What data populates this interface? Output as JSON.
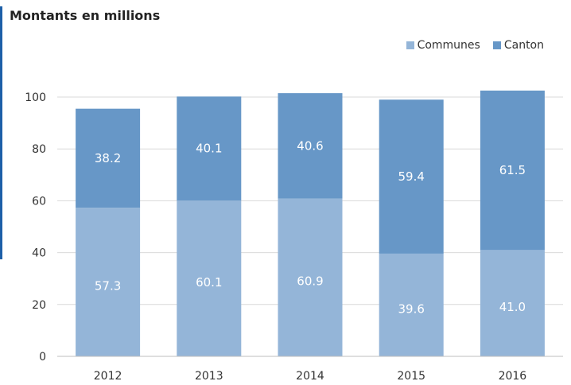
{
  "chart_data": {
    "type": "bar",
    "stacked": true,
    "title": "Montants en millions",
    "categories": [
      "2012",
      "2013",
      "2014",
      "2015",
      "2016"
    ],
    "series": [
      {
        "name": "Communes",
        "color": "#94b5d8",
        "values": [
          57.3,
          60.1,
          60.9,
          39.6,
          41.0
        ],
        "labels": [
          "57.3",
          "60.1",
          "60.9",
          "39.6",
          "41.0"
        ]
      },
      {
        "name": "Canton",
        "color": "#6797c7",
        "values": [
          38.2,
          40.1,
          40.6,
          59.4,
          61.5
        ],
        "labels": [
          "38.2",
          "40.1",
          "40.6",
          "59.4",
          "61.5"
        ]
      }
    ],
    "yticks": [
      "0",
      "20",
      "40",
      "60",
      "80",
      "100"
    ],
    "ylim": [
      0,
      100
    ],
    "xlabel": "",
    "ylabel": "",
    "grid": true,
    "legend_position": "top-right"
  }
}
